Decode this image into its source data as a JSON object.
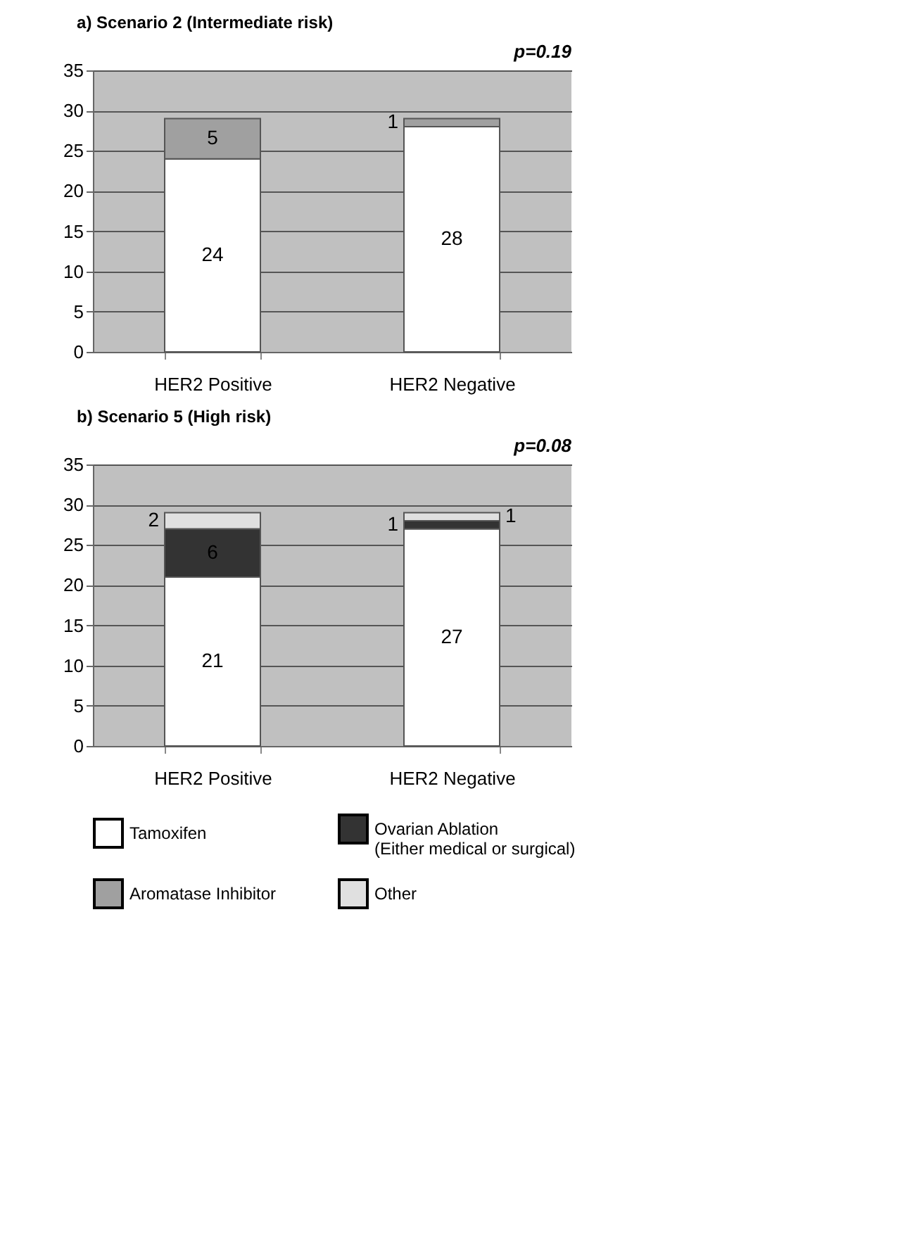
{
  "chart_data": [
    {
      "type": "bar",
      "title": "a) Scenario 2 (Intermediate risk)",
      "annotations": [
        "p=0.19"
      ],
      "categories": [
        "HER2 Positive",
        "HER2 Negative"
      ],
      "stacked": true,
      "ylim": [
        0,
        35
      ],
      "yticks": [
        0,
        5,
        10,
        15,
        20,
        25,
        30,
        35
      ],
      "grid": "y",
      "data_labels": true,
      "legend": "bottom",
      "series": [
        {
          "name": "Tamoxifen",
          "color": "#ffffff",
          "values": [
            24,
            28
          ]
        },
        {
          "name": "Aromatase Inhibitor",
          "color": "#a0a0a0",
          "values": [
            5,
            1
          ]
        }
      ]
    },
    {
      "type": "bar",
      "title": "b) Scenario 5 (High risk)",
      "annotations": [
        "p=0.08"
      ],
      "categories": [
        "HER2 Positive",
        "HER2 Negative"
      ],
      "stacked": true,
      "ylim": [
        0,
        35
      ],
      "yticks": [
        0,
        5,
        10,
        15,
        20,
        25,
        30,
        35
      ],
      "grid": "y",
      "data_labels": true,
      "legend": "bottom",
      "series": [
        {
          "name": "Tamoxifen",
          "color": "#ffffff",
          "values": [
            21,
            27
          ]
        },
        {
          "name": "Ovarian Ablation\n(Either medical or surgical)",
          "color": "#333333",
          "values": [
            6,
            1
          ]
        },
        {
          "name": "Other",
          "color": "#e0e0e0",
          "values": [
            2,
            1
          ]
        }
      ]
    }
  ]
}
